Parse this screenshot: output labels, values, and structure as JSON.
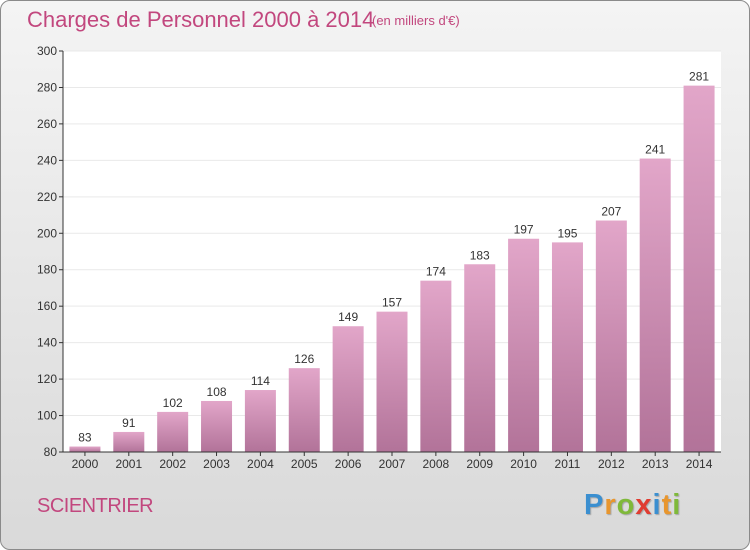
{
  "header": {
    "title": "Charges de Personnel 2000 à 2014",
    "subtitle": "(en milliers d'€)"
  },
  "footer": {
    "commune": "SCIENTRIER",
    "brand": "Proxiti",
    "brand_letters": [
      {
        "char": "P",
        "color": "#3b8fd0"
      },
      {
        "char": "r",
        "color": "#e8962e"
      },
      {
        "char": "o",
        "color": "#7fb93a"
      },
      {
        "char": "x",
        "color": "#e03c31"
      },
      {
        "char": "i",
        "color": "#3b8fd0"
      },
      {
        "char": "t",
        "color": "#e8962e"
      },
      {
        "char": "i",
        "color": "#7fb93a"
      }
    ]
  },
  "colors": {
    "bar_top": "#e2a6c9",
    "bar_bottom": "#b27399",
    "axis": "#333333",
    "grid": "#e9e9e9",
    "accent": "#c2477e"
  },
  "chart_data": {
    "type": "bar",
    "title": "Charges de Personnel 2000 à 2014",
    "subtitle": "(en milliers d'€)",
    "categories": [
      "2000",
      "2001",
      "2002",
      "2003",
      "2004",
      "2005",
      "2006",
      "2007",
      "2008",
      "2009",
      "2010",
      "2011",
      "2012",
      "2013",
      "2014"
    ],
    "values": [
      83,
      91,
      102,
      108,
      114,
      126,
      149,
      157,
      174,
      183,
      197,
      195,
      207,
      241,
      281
    ],
    "ylim": [
      80,
      300
    ],
    "yticks": [
      80,
      100,
      120,
      140,
      160,
      180,
      200,
      220,
      240,
      260,
      280,
      300
    ],
    "grid": true,
    "legend": "none",
    "xlabel": "",
    "ylabel": ""
  }
}
